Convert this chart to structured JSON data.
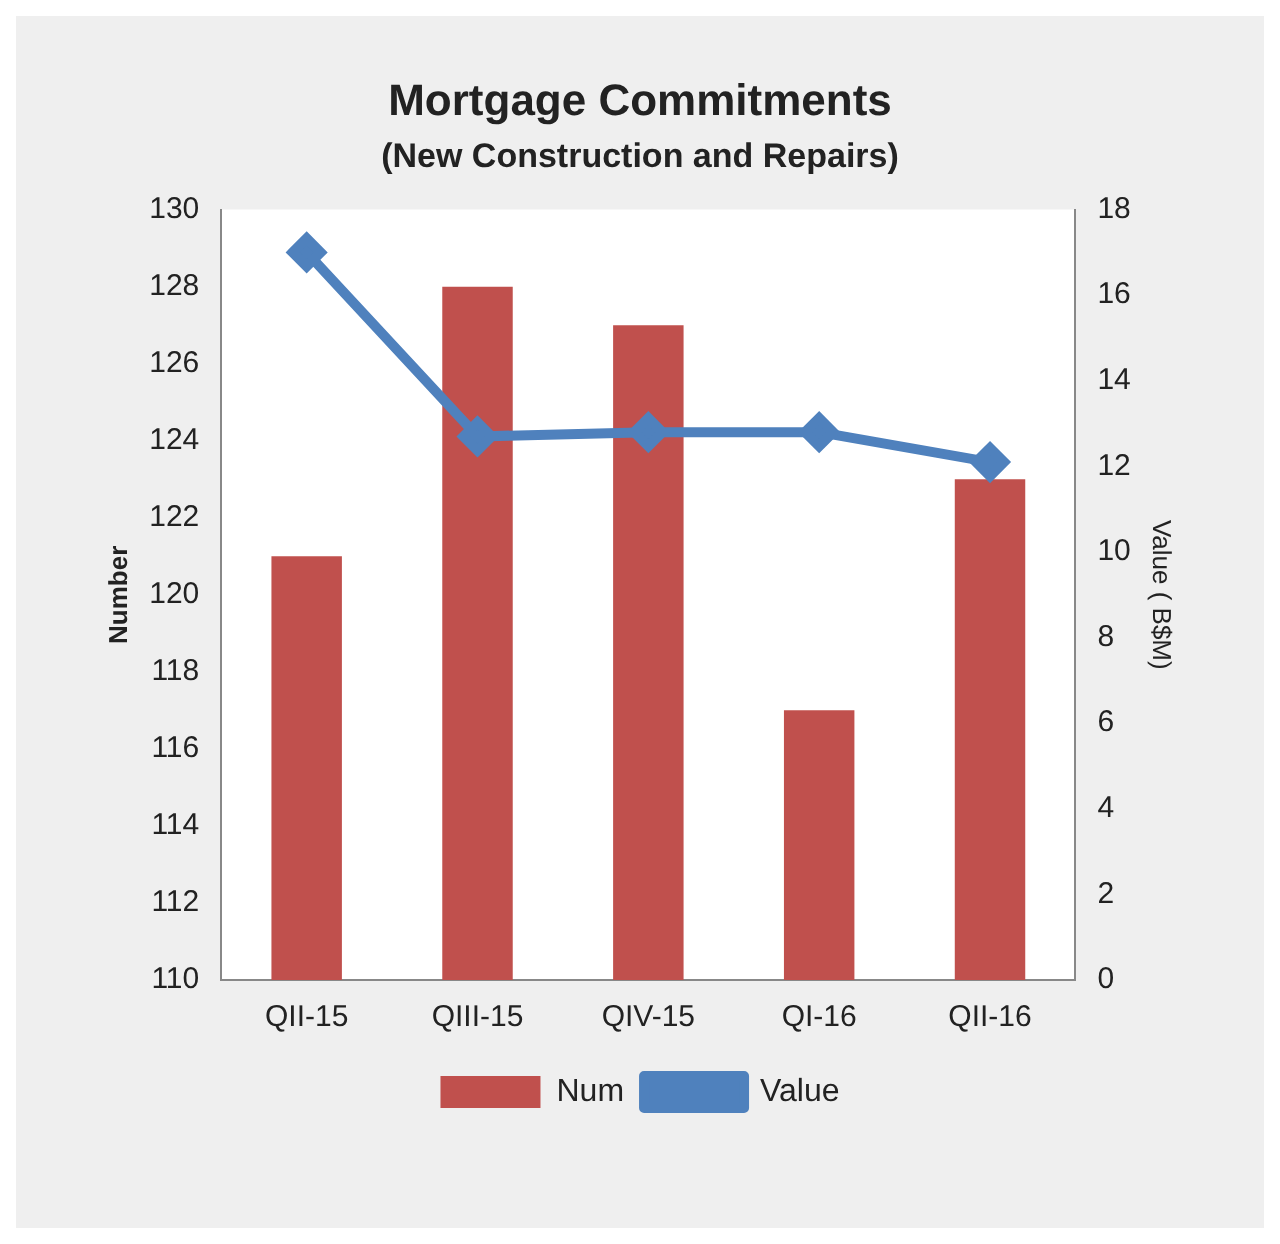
{
  "chart_data": {
    "type": "bar",
    "title": "Mortgage Commitments",
    "subtitle": "(New Construction and Repairs)",
    "ylabel": "Number",
    "y2label": "Value ( B$M)",
    "categories": [
      "QII-15",
      "QIII-15",
      "QIV-15",
      "QI-16",
      "QII-16"
    ],
    "series": [
      {
        "name": "Num",
        "color": "#c0504d",
        "values": [
          121,
          128,
          127,
          117,
          123
        ]
      },
      {
        "name": "Value",
        "type": "line",
        "axis": "y2",
        "color": "#4f81bd",
        "marker": "diamond",
        "values": [
          17.0,
          12.7,
          12.8,
          12.8,
          12.1
        ]
      }
    ],
    "ylim": [
      110,
      130
    ],
    "yticks": [
      110,
      112,
      114,
      116,
      118,
      120,
      122,
      124,
      126,
      128,
      130
    ],
    "y2lim": [
      0,
      18
    ],
    "y2ticks": [
      0,
      2,
      4,
      6,
      8,
      10,
      12,
      14,
      16,
      18
    ],
    "grid": false,
    "legend": "bottom"
  }
}
